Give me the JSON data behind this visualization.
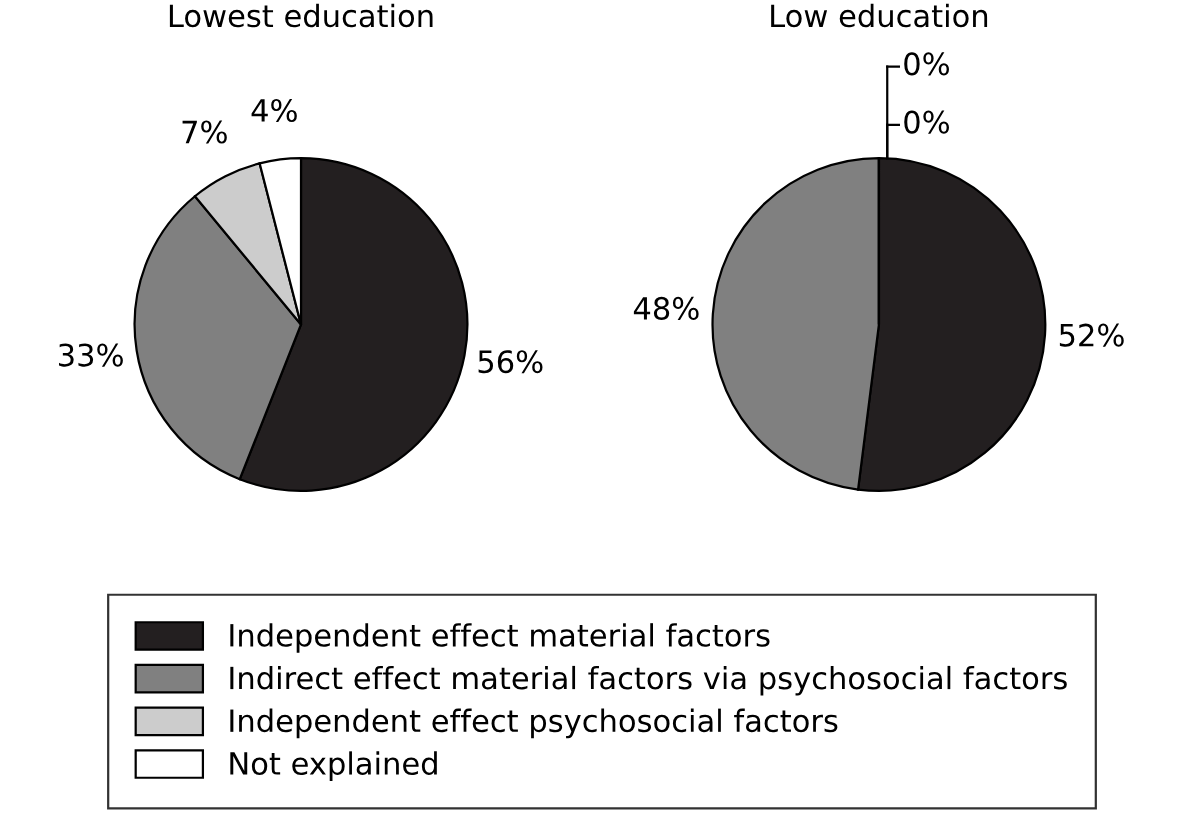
{
  "chart_data": [
    {
      "type": "pie",
      "title": "Lowest education",
      "categories": [
        "Independent effect material factors",
        "Indirect effect material factors via psychosocial factors",
        "Independent effect psychosocial factors",
        "Not explained"
      ],
      "values": [
        56,
        33,
        7,
        4
      ],
      "colors": [
        "#231f20",
        "#808080",
        "#cccccc",
        "#ffffff"
      ],
      "value_labels": [
        "56%",
        "33%",
        "7%",
        "4%"
      ],
      "legend": "bottom"
    },
    {
      "type": "pie",
      "title": "Low education",
      "categories": [
        null,
        null,
        null,
        null
      ],
      "values": [
        52,
        48,
        0,
        0
      ],
      "colors": [
        "#231f20",
        "#808080",
        "#cccccc",
        "#ffffff"
      ],
      "value_labels": [
        "52%",
        "48%",
        "0%",
        "0%"
      ]
    }
  ]
}
